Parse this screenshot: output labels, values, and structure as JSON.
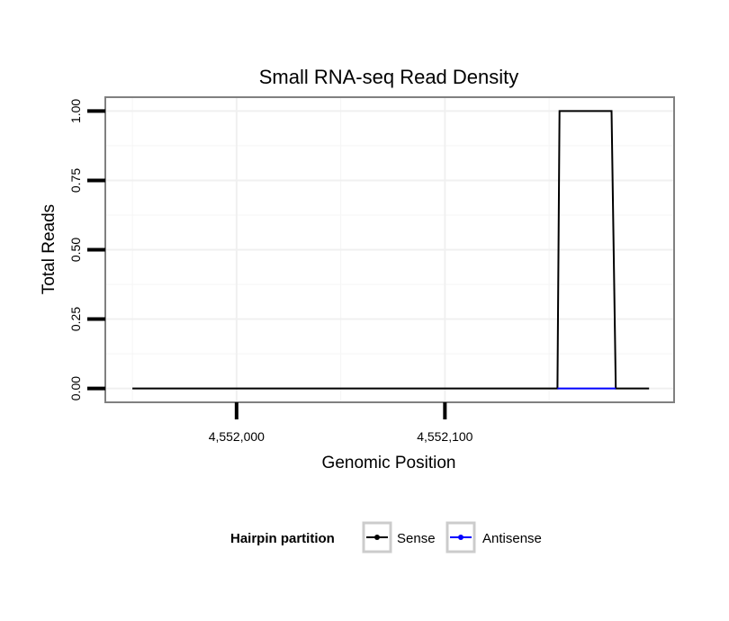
{
  "chart_data": {
    "type": "line",
    "title": "Small RNA-seq Read Density",
    "xlabel": "Genomic Position",
    "ylabel": "Total Reads",
    "xlim": [
      4551937,
      4552210
    ],
    "ylim": [
      -0.05,
      1.05
    ],
    "x_ticks": [
      4552000,
      4552100
    ],
    "x_tick_labels": [
      "4,552,000",
      "4,552,100"
    ],
    "y_ticks": [
      0,
      0.25,
      0.5,
      0.75,
      1.0
    ],
    "y_tick_labels": [
      "0.00",
      "0.25",
      "0.50",
      "0.75",
      "1.00"
    ],
    "grid": true,
    "legend": {
      "title": "Hairpin partition",
      "position": "bottom",
      "entries": [
        "Sense",
        "Antisense"
      ]
    },
    "series": [
      {
        "name": "Sense",
        "color": "#000000",
        "x": [
          4551950,
          4552154,
          4552155,
          4552180,
          4552182,
          4552198
        ],
        "y": [
          0,
          0,
          1,
          1,
          0,
          0
        ]
      },
      {
        "name": "Antisense",
        "color": "#0000ff",
        "x": [
          4552154,
          4552182
        ],
        "y": [
          0,
          0
        ]
      }
    ]
  }
}
